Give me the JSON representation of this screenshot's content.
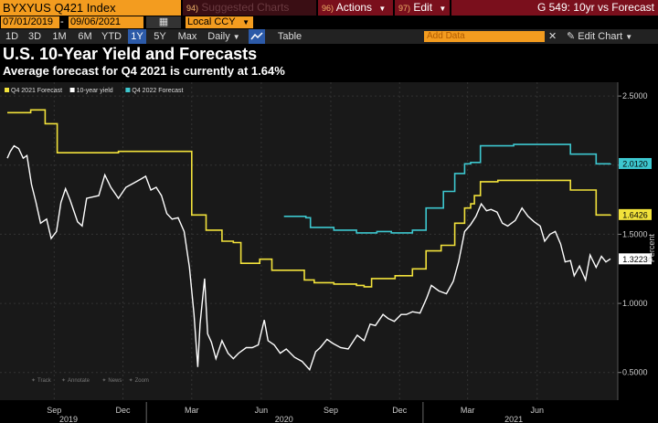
{
  "toolbar": {
    "ticker": "BYXYUS Q421 Index",
    "suggested_icon_text": "94)",
    "suggested": "Suggested Charts",
    "actions_icon_text": "96)",
    "actions": "Actions",
    "edit_icon_text": "97)",
    "edit": "Edit",
    "page_title": "G 549: 10yr vs Forecast",
    "date_start": "07/01/2019",
    "date_end": "09/06/2021",
    "currency": "Local CCY",
    "periods": [
      "1D",
      "3D",
      "1M",
      "6M",
      "YTD",
      "1Y",
      "5Y",
      "Max"
    ],
    "selected_period": "1Y",
    "frequency": "Daily",
    "table": "Table",
    "add_data": "Add Data",
    "edit_chart": "Edit Chart"
  },
  "colors": {
    "q4_2021": "#f2e23b",
    "ten_year": "#ffffff",
    "q4_2022": "#3dc7cf",
    "accent": "#f39c1f",
    "bar_red": "#7a0f1c",
    "selected_blue": "#2c5aa8"
  },
  "chart_data": {
    "type": "line",
    "title": "U.S. 10-Year Yield and Forecasts",
    "subtitle": "Average forecast for Q4 2021 is currently at 1.64%",
    "ylabel": "Percent",
    "ylim": [
      0.3,
      2.6
    ],
    "y_ticks": [
      "2.5000",
      "2.0000",
      "1.5000",
      "1.0000",
      "0.5000"
    ],
    "x_range": [
      "2019-07-01",
      "2021-09-06"
    ],
    "x_ticks": [
      {
        "date": "2019-09-01",
        "label": "Sep"
      },
      {
        "date": "2019-12-01",
        "label": "Dec"
      },
      {
        "date": "2020-03-01",
        "label": "Mar"
      },
      {
        "date": "2020-06-01",
        "label": "Jun"
      },
      {
        "date": "2020-09-01",
        "label": "Sep"
      },
      {
        "date": "2020-12-01",
        "label": "Dec"
      },
      {
        "date": "2021-03-01",
        "label": "Mar"
      },
      {
        "date": "2021-06-01",
        "label": "Jun"
      }
    ],
    "year_labels": [
      "2019",
      "2020",
      "2021"
    ],
    "legend_placement": "top-left",
    "chart_tools": [
      "Track",
      "Annotate",
      "News",
      "Zoom"
    ],
    "series": [
      {
        "name": "Q4 2021 Forecast",
        "color": "#f2e23b",
        "step": true,
        "last_label": "1.6426",
        "points": [
          [
            "2019-07-01",
            2.38
          ],
          [
            "2019-08-01",
            2.4
          ],
          [
            "2019-08-20",
            2.3
          ],
          [
            "2019-09-05",
            2.09
          ],
          [
            "2019-10-15",
            2.09
          ],
          [
            "2019-11-25",
            2.1
          ],
          [
            "2020-02-25",
            2.1
          ],
          [
            "2020-03-01",
            1.64
          ],
          [
            "2020-03-20",
            1.53
          ],
          [
            "2020-04-10",
            1.45
          ],
          [
            "2020-04-25",
            1.44
          ],
          [
            "2020-05-05",
            1.29
          ],
          [
            "2020-05-30",
            1.32
          ],
          [
            "2020-06-15",
            1.24
          ],
          [
            "2020-07-28",
            1.17
          ],
          [
            "2020-08-10",
            1.15
          ],
          [
            "2020-09-05",
            1.14
          ],
          [
            "2020-10-05",
            1.13
          ],
          [
            "2020-10-15",
            1.12
          ],
          [
            "2020-10-25",
            1.18
          ],
          [
            "2020-11-25",
            1.2
          ],
          [
            "2020-12-18",
            1.25
          ],
          [
            "2021-01-05",
            1.38
          ],
          [
            "2021-01-25",
            1.42
          ],
          [
            "2021-02-12",
            1.58
          ],
          [
            "2021-02-25",
            1.69
          ],
          [
            "2021-03-05",
            1.72
          ],
          [
            "2021-03-10",
            1.78
          ],
          [
            "2021-03-18",
            1.88
          ],
          [
            "2021-04-10",
            1.89
          ],
          [
            "2021-06-25",
            1.89
          ],
          [
            "2021-07-15",
            1.82
          ],
          [
            "2021-08-18",
            1.64
          ],
          [
            "2021-09-06",
            1.6426
          ]
        ]
      },
      {
        "name": "10-year yield",
        "color": "#ffffff",
        "step": false,
        "last_label": "1.3223",
        "points": [
          [
            "2019-07-01",
            2.05
          ],
          [
            "2019-07-05",
            2.1
          ],
          [
            "2019-07-10",
            2.14
          ],
          [
            "2019-07-16",
            2.12
          ],
          [
            "2019-07-22",
            2.05
          ],
          [
            "2019-07-27",
            2.07
          ],
          [
            "2019-08-02",
            1.86
          ],
          [
            "2019-08-08",
            1.73
          ],
          [
            "2019-08-14",
            1.58
          ],
          [
            "2019-08-22",
            1.61
          ],
          [
            "2019-08-28",
            1.47
          ],
          [
            "2019-09-04",
            1.52
          ],
          [
            "2019-09-10",
            1.73
          ],
          [
            "2019-09-16",
            1.83
          ],
          [
            "2019-09-22",
            1.75
          ],
          [
            "2019-10-02",
            1.59
          ],
          [
            "2019-10-08",
            1.56
          ],
          [
            "2019-10-14",
            1.76
          ],
          [
            "2019-10-22",
            1.77
          ],
          [
            "2019-10-30",
            1.78
          ],
          [
            "2019-11-07",
            1.93
          ],
          [
            "2019-11-15",
            1.84
          ],
          [
            "2019-11-25",
            1.76
          ],
          [
            "2019-12-05",
            1.84
          ],
          [
            "2019-12-15",
            1.87
          ],
          [
            "2019-12-25",
            1.9
          ],
          [
            "2019-12-31",
            1.92
          ],
          [
            "2020-01-07",
            1.82
          ],
          [
            "2020-01-14",
            1.84
          ],
          [
            "2020-01-21",
            1.78
          ],
          [
            "2020-01-28",
            1.65
          ],
          [
            "2020-02-04",
            1.61
          ],
          [
            "2020-02-12",
            1.62
          ],
          [
            "2020-02-20",
            1.52
          ],
          [
            "2020-02-27",
            1.26
          ],
          [
            "2020-03-04",
            0.92
          ],
          [
            "2020-03-09",
            0.54
          ],
          [
            "2020-03-12",
            0.85
          ],
          [
            "2020-03-18",
            1.18
          ],
          [
            "2020-03-22",
            0.78
          ],
          [
            "2020-03-27",
            0.72
          ],
          [
            "2020-04-02",
            0.6
          ],
          [
            "2020-04-10",
            0.73
          ],
          [
            "2020-04-18",
            0.64
          ],
          [
            "2020-04-25",
            0.6
          ],
          [
            "2020-05-02",
            0.64
          ],
          [
            "2020-05-12",
            0.68
          ],
          [
            "2020-05-20",
            0.68
          ],
          [
            "2020-05-28",
            0.7
          ],
          [
            "2020-06-05",
            0.88
          ],
          [
            "2020-06-10",
            0.73
          ],
          [
            "2020-06-18",
            0.7
          ],
          [
            "2020-06-26",
            0.64
          ],
          [
            "2020-07-04",
            0.67
          ],
          [
            "2020-07-15",
            0.61
          ],
          [
            "2020-07-25",
            0.58
          ],
          [
            "2020-08-04",
            0.52
          ],
          [
            "2020-08-12",
            0.65
          ],
          [
            "2020-08-18",
            0.68
          ],
          [
            "2020-08-27",
            0.74
          ],
          [
            "2020-09-04",
            0.71
          ],
          [
            "2020-09-14",
            0.68
          ],
          [
            "2020-09-24",
            0.67
          ],
          [
            "2020-10-06",
            0.77
          ],
          [
            "2020-10-15",
            0.73
          ],
          [
            "2020-10-23",
            0.85
          ],
          [
            "2020-10-30",
            0.84
          ],
          [
            "2020-11-09",
            0.92
          ],
          [
            "2020-11-16",
            0.89
          ],
          [
            "2020-11-24",
            0.87
          ],
          [
            "2020-12-03",
            0.92
          ],
          [
            "2020-12-10",
            0.92
          ],
          [
            "2020-12-18",
            0.94
          ],
          [
            "2020-12-28",
            0.93
          ],
          [
            "2021-01-06",
            1.04
          ],
          [
            "2021-01-12",
            1.13
          ],
          [
            "2021-01-22",
            1.09
          ],
          [
            "2021-02-01",
            1.07
          ],
          [
            "2021-02-10",
            1.16
          ],
          [
            "2021-02-17",
            1.3
          ],
          [
            "2021-02-25",
            1.52
          ],
          [
            "2021-03-05",
            1.57
          ],
          [
            "2021-03-12",
            1.63
          ],
          [
            "2021-03-19",
            1.72
          ],
          [
            "2021-03-26",
            1.67
          ],
          [
            "2021-04-01",
            1.68
          ],
          [
            "2021-04-09",
            1.66
          ],
          [
            "2021-04-16",
            1.58
          ],
          [
            "2021-04-23",
            1.56
          ],
          [
            "2021-05-03",
            1.6
          ],
          [
            "2021-05-12",
            1.69
          ],
          [
            "2021-05-20",
            1.63
          ],
          [
            "2021-05-28",
            1.59
          ],
          [
            "2021-06-05",
            1.56
          ],
          [
            "2021-06-11",
            1.45
          ],
          [
            "2021-06-18",
            1.5
          ],
          [
            "2021-06-25",
            1.52
          ],
          [
            "2021-07-02",
            1.43
          ],
          [
            "2021-07-08",
            1.3
          ],
          [
            "2021-07-15",
            1.31
          ],
          [
            "2021-07-20",
            1.2
          ],
          [
            "2021-07-27",
            1.27
          ],
          [
            "2021-08-04",
            1.17
          ],
          [
            "2021-08-10",
            1.35
          ],
          [
            "2021-08-18",
            1.26
          ],
          [
            "2021-08-25",
            1.34
          ],
          [
            "2021-08-31",
            1.3
          ],
          [
            "2021-09-06",
            1.3223
          ]
        ]
      },
      {
        "name": "Q4 2022 Forecast",
        "color": "#3dc7cf",
        "step": true,
        "last_label": "2.0120",
        "points": [
          [
            "2020-07-01",
            1.63
          ],
          [
            "2020-07-30",
            1.62
          ],
          [
            "2020-08-05",
            1.55
          ],
          [
            "2020-09-05",
            1.53
          ],
          [
            "2020-10-05",
            1.51
          ],
          [
            "2020-11-01",
            1.52
          ],
          [
            "2020-11-20",
            1.51
          ],
          [
            "2020-12-18",
            1.53
          ],
          [
            "2021-01-05",
            1.69
          ],
          [
            "2021-01-28",
            1.81
          ],
          [
            "2021-02-12",
            1.94
          ],
          [
            "2021-02-25",
            2.01
          ],
          [
            "2021-03-05",
            2.02
          ],
          [
            "2021-03-18",
            2.14
          ],
          [
            "2021-04-10",
            2.14
          ],
          [
            "2021-05-01",
            2.15
          ],
          [
            "2021-07-15",
            2.08
          ],
          [
            "2021-08-18",
            2.01
          ],
          [
            "2021-09-06",
            2.012
          ]
        ]
      }
    ]
  }
}
